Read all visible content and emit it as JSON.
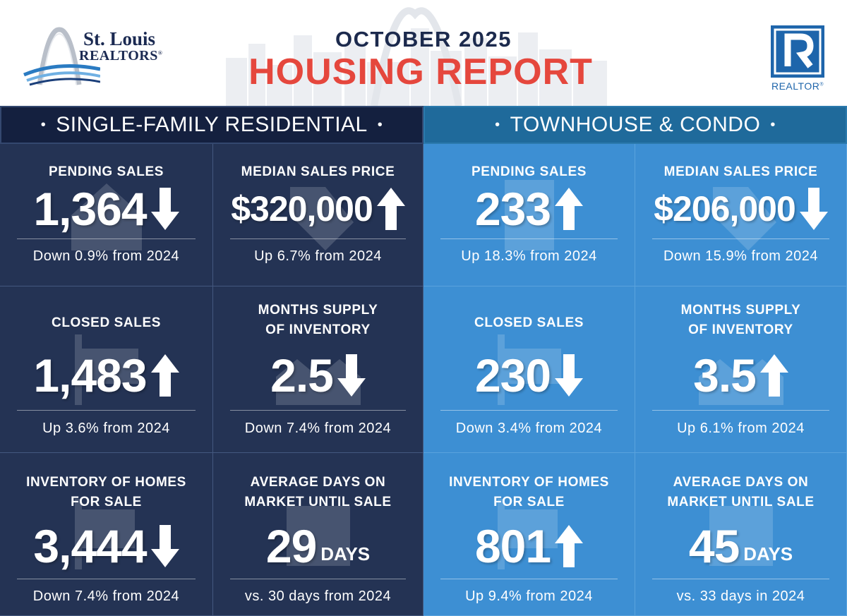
{
  "brand": {
    "name": "St. Louis",
    "sub": "REALTORS",
    "reg_mark": "®",
    "realtor_mark": "REALTOR",
    "realtor_reg": "®"
  },
  "header": {
    "date": "OCTOBER 2025",
    "title": "HOUSING REPORT"
  },
  "colors": {
    "title_red": "#e5473d",
    "navy": "#14203f",
    "dark_tile": "#243354",
    "teal_header": "#1f6a9b",
    "light_tile": "#3d8fd3",
    "realtor_blue": "#1e65ab"
  },
  "sections": [
    {
      "title": "SINGLE-FAMILY RESIDENTIAL",
      "metrics": [
        {
          "label_lines": [
            "PENDING SALES"
          ],
          "value": "1,364",
          "unit": "",
          "direction": "down",
          "note": "Down 0.9% from 2024",
          "icon": "house-icon"
        },
        {
          "label_lines": [
            "MEDIAN SALES PRICE"
          ],
          "value": "$320,000",
          "unit": "",
          "direction": "up",
          "note": "Up 6.7% from 2024",
          "icon": "price-tag-icon"
        },
        {
          "label_lines": [
            "CLOSED SALES"
          ],
          "value": "1,483",
          "unit": "",
          "direction": "up",
          "note": "Up 3.6% from 2024",
          "icon": "sold-sign-icon"
        },
        {
          "label_lines": [
            "MONTHS SUPPLY",
            "OF INVENTORY"
          ],
          "value": "2.5",
          "unit": "",
          "direction": "down",
          "note": "Down 7.4% from 2024",
          "icon": "houses-icon"
        },
        {
          "label_lines": [
            "INVENTORY OF HOMES",
            "FOR SALE"
          ],
          "value": "3,444",
          "unit": "",
          "direction": "down",
          "note": "Down 7.4% from 2024",
          "icon": "sign-icon"
        },
        {
          "label_lines": [
            "AVERAGE DAYS ON",
            "MARKET UNTIL SALE"
          ],
          "value": "29",
          "unit": "DAYS",
          "direction": "",
          "note": "vs. 30 days from 2024",
          "icon": "calendar-icon"
        }
      ]
    },
    {
      "title": "TOWNHOUSE & CONDO",
      "metrics": [
        {
          "label_lines": [
            "PENDING SALES"
          ],
          "value": "233",
          "unit": "",
          "direction": "up",
          "note": "Up 18.3% from 2024",
          "icon": "building-icon"
        },
        {
          "label_lines": [
            "MEDIAN SALES PRICE"
          ],
          "value": "$206,000",
          "unit": "",
          "direction": "down",
          "note": "Down 15.9% from 2024",
          "icon": "price-tag-icon"
        },
        {
          "label_lines": [
            "CLOSED SALES"
          ],
          "value": "230",
          "unit": "",
          "direction": "down",
          "note": "Down 3.4% from 2024",
          "icon": "sold-sign-icon"
        },
        {
          "label_lines": [
            "MONTHS SUPPLY",
            "OF INVENTORY"
          ],
          "value": "3.5",
          "unit": "",
          "direction": "up",
          "note": "Up 6.1% from 2024",
          "icon": "houses-icon"
        },
        {
          "label_lines": [
            "INVENTORY OF HOMES",
            "FOR SALE"
          ],
          "value": "801",
          "unit": "",
          "direction": "up",
          "note": "Up 9.4% from 2024",
          "icon": "sign-icon"
        },
        {
          "label_lines": [
            "AVERAGE DAYS ON",
            "MARKET UNTIL SALE"
          ],
          "value": "45",
          "unit": "DAYS",
          "direction": "",
          "note": "vs. 33 days in 2024",
          "icon": "calendar-icon"
        }
      ]
    }
  ]
}
